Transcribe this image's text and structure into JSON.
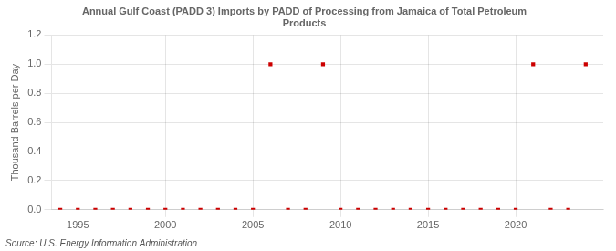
{
  "chart_data": {
    "type": "scatter",
    "title": "Annual Gulf Coast (PADD 3) Imports by PADD of Processing from Jamaica of Total Petroleum\nProducts",
    "ylabel": "Thousand Barrels per Day",
    "annotation": "Source: U.S. Energy Information Administration",
    "x": [
      1994,
      1995,
      1996,
      1997,
      1998,
      1999,
      2000,
      2001,
      2002,
      2003,
      2004,
      2005,
      2006,
      2007,
      2008,
      2009,
      2010,
      2011,
      2012,
      2013,
      2014,
      2015,
      2016,
      2017,
      2018,
      2019,
      2020,
      2021,
      2022,
      2023,
      2024
    ],
    "values": [
      0,
      0,
      0,
      0,
      0,
      0,
      0,
      0,
      0,
      0,
      0,
      0,
      1.0,
      0,
      0,
      1.0,
      0,
      0,
      0,
      0,
      0,
      0,
      0,
      0,
      0,
      0,
      0,
      1.0,
      0,
      0,
      1.0
    ],
    "color": "#cc0000",
    "marker": "square",
    "xlim": [
      1993.5,
      2025
    ],
    "xticks": [
      1995,
      2000,
      2005,
      2010,
      2015,
      2020
    ],
    "ylim": [
      0.0,
      1.2
    ],
    "yticks": [
      {
        "value": 0.0,
        "label": "0.0"
      },
      0.2,
      0.4,
      0.6,
      0.8,
      {
        "value": 1.0,
        "label": "1.0"
      },
      1.2
    ],
    "grid": true
  }
}
